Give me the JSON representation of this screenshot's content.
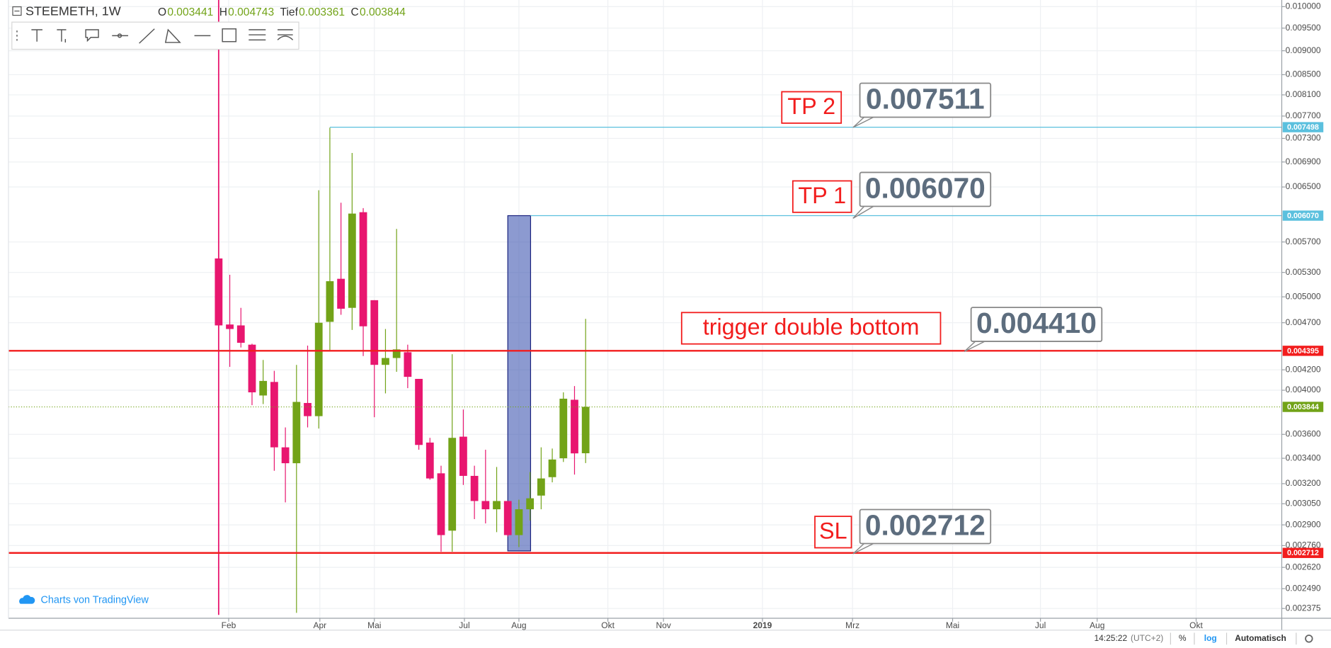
{
  "header": {
    "symbol": "STEEMETH, 1W",
    "ohlc": [
      {
        "label": "O",
        "value": 0.003441
      },
      {
        "label": "H",
        "value": 0.004743
      },
      {
        "label": "Tief",
        "value": 0.003361
      },
      {
        "label": "C",
        "value": 0.003844
      }
    ]
  },
  "chart_data": {
    "type": "candlestick",
    "log_scale": true,
    "grid": true,
    "up_color": "#72a318",
    "down_color": "#e8166f",
    "x": [
      0,
      1,
      2,
      3,
      4,
      5,
      6,
      7,
      8,
      9,
      10,
      11,
      12,
      13,
      14,
      15,
      16,
      17,
      18,
      19,
      20,
      21,
      22,
      23,
      24,
      25,
      26,
      27,
      28,
      29,
      30,
      31,
      32,
      33
    ],
    "open": [
      0.00548,
      0.00468,
      0.00467,
      0.00446,
      0.00395,
      0.00408,
      0.00349,
      0.00336,
      0.00388,
      0.00376,
      0.00471,
      0.00522,
      0.00487,
      0.00612,
      0.00496,
      0.00425,
      0.00432,
      0.00438,
      0.00411,
      0.00353,
      0.00328,
      0.00286,
      0.00358,
      0.00326,
      0.00307,
      0.00301,
      0.00307,
      0.00283,
      0.00301,
      0.00311,
      0.00325,
      0.0034,
      0.00391,
      0.003441
    ],
    "high": [
      0.0055,
      0.00527,
      0.00487,
      0.00447,
      0.0043,
      0.00419,
      0.00366,
      0.00425,
      0.00445,
      0.00645,
      0.00749,
      0.00626,
      0.00705,
      0.00618,
      0.00496,
      0.00463,
      0.00588,
      0.00446,
      0.00411,
      0.00357,
      0.00334,
      0.00436,
      0.00382,
      0.00334,
      0.00347,
      0.00333,
      0.00307,
      0.00308,
      0.00329,
      0.00349,
      0.00348,
      0.00398,
      0.00404,
      0.004743
    ],
    "low": [
      0.00465,
      0.00423,
      0.00443,
      0.00386,
      0.00387,
      0.0033,
      0.00306,
      0.00235,
      0.00366,
      0.00365,
      0.00439,
      0.00479,
      0.00462,
      0.00434,
      0.00375,
      0.00397,
      0.00418,
      0.00402,
      0.00347,
      0.00323,
      0.00272,
      0.00272,
      0.00319,
      0.00294,
      0.00291,
      0.00285,
      0.00282,
      0.00275,
      0.00293,
      0.00301,
      0.00321,
      0.00337,
      0.00327,
      0.003361
    ],
    "close": [
      0.00467,
      0.00463,
      0.00448,
      0.00398,
      0.00409,
      0.00349,
      0.00336,
      0.00389,
      0.00376,
      0.0047,
      0.00519,
      0.00486,
      0.0061,
      0.00466,
      0.00425,
      0.00432,
      0.00441,
      0.00413,
      0.00351,
      0.00324,
      0.00283,
      0.00357,
      0.00326,
      0.00307,
      0.00301,
      0.00307,
      0.00283,
      0.00301,
      0.00309,
      0.00324,
      0.00339,
      0.00392,
      0.00344,
      0.003844
    ],
    "xlim": [
      -18.9,
      95.6
    ],
    "xticks": [
      {
        "value": 0.9,
        "label": "Feb"
      },
      {
        "value": 9.1,
        "label": "Apr"
      },
      {
        "value": 14,
        "label": "Mai"
      },
      {
        "value": 22.1,
        "label": "Jul"
      },
      {
        "value": 27,
        "label": "Aug"
      },
      {
        "value": 35,
        "label": "Okt"
      },
      {
        "value": 40,
        "label": "Nov"
      },
      {
        "value": 48.9,
        "label": "2019"
      },
      {
        "value": 57,
        "label": "Mrz"
      },
      {
        "value": 66,
        "label": "Mai"
      },
      {
        "value": 73.9,
        "label": "Jul"
      },
      {
        "value": 79,
        "label": "Aug"
      },
      {
        "value": 87.9,
        "label": "Okt"
      }
    ],
    "ylim": [
      0.00232,
      0.01016
    ],
    "yticks": [
      {
        "value": 0.01,
        "label": "0.010000"
      },
      {
        "value": 0.0095,
        "label": "0.009500"
      },
      {
        "value": 0.009,
        "label": "0.009000"
      },
      {
        "value": 0.0085,
        "label": "0.008500"
      },
      {
        "value": 0.0081,
        "label": "0.008100"
      },
      {
        "value": 0.0077,
        "label": "0.007700"
      },
      {
        "value": 0.0073,
        "label": "0.007300"
      },
      {
        "value": 0.0069,
        "label": "0.006900"
      },
      {
        "value": 0.0065,
        "label": "0.006500"
      },
      {
        "value": 0.0057,
        "label": "0.005700"
      },
      {
        "value": 0.0053,
        "label": "0.005300"
      },
      {
        "value": 0.005,
        "label": "0.005000"
      },
      {
        "value": 0.0047,
        "label": "0.004700"
      },
      {
        "value": 0.0042,
        "label": "0.004200"
      },
      {
        "value": 0.004,
        "label": "0.004000"
      },
      {
        "value": 0.0036,
        "label": "0.003600"
      },
      {
        "value": 0.0034,
        "label": "0.003400"
      },
      {
        "value": 0.0032,
        "label": "0.003200"
      },
      {
        "value": 0.00305,
        "label": "0.003050"
      },
      {
        "value": 0.0029,
        "label": "0.002900"
      },
      {
        "value": 0.00276,
        "label": "0.002760"
      },
      {
        "value": 0.00262,
        "label": "0.002620"
      },
      {
        "value": 0.00249,
        "label": "0.002490"
      },
      {
        "value": 0.002375,
        "label": "0.002375"
      }
    ],
    "price_lines": [
      {
        "price": 0.007498,
        "color": "#5bc0de",
        "start": 10
      },
      {
        "price": {
          "value": 0.00607,
          "label": "0.006070"
        },
        "color": "#5bc0de",
        "start": 28.05
      },
      {
        "price": 0.004395,
        "color": "#f21d1d"
      },
      {
        "price": 0.003844,
        "color": "#72a318",
        "style": "dotted"
      },
      {
        "price": 0.002712,
        "color": "#f21d1d"
      }
    ],
    "box": {
      "x0": 26,
      "x1": 28.05,
      "top": 0.00607,
      "bottom": 0.002725,
      "color": "#3f57b0"
    },
    "vertical_line": {
      "x": 0,
      "color": "#e8166f"
    },
    "annotations": [
      {
        "text": "TP 2",
        "price": "0.007511"
      },
      {
        "text": "TP 1",
        "price": "0.006070"
      },
      {
        "text": "trigger double bottom",
        "price": "0.004410"
      },
      {
        "text": "SL",
        "price": "0.002712"
      }
    ]
  },
  "footer": {
    "branding": "Charts von TradingView",
    "time": "14:25:22",
    "timezone": "(UTC+2)",
    "percent": "%",
    "log": "log",
    "auto": "Automatisch"
  }
}
